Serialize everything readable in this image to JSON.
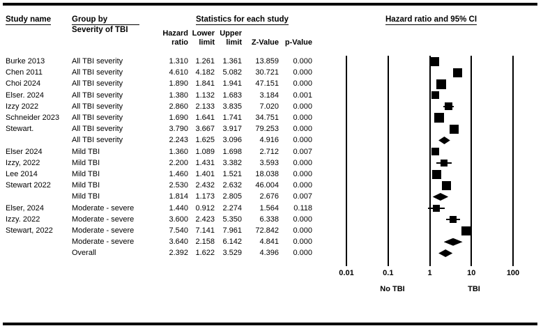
{
  "header": {
    "study_name": "Study name",
    "group_by": "Group by",
    "group_by_sub": "Severity of TBI",
    "stats_title": "Statistics for each study",
    "plot_title": "Hazard ratio and 95% CI"
  },
  "stats_columns": {
    "hazard_l1": "Hazard",
    "hazard_l2": "ratio",
    "lower_l1": "Lower",
    "lower_l2": "limit",
    "upper_l1": "Upper",
    "upper_l2": "limit",
    "z_label": "Z-Value",
    "p_label": "p-Value"
  },
  "axis": {
    "tick_labels": [
      "0.01",
      "0.1",
      "1",
      "10",
      "100"
    ],
    "left_group_label": "No TBI",
    "right_group_label": "TBI"
  },
  "colors": {
    "ink": "#000000",
    "background": "#ffffff"
  },
  "chart_data": {
    "type": "scatter",
    "subtype": "forest_plot",
    "x_scale": "log",
    "x_range": [
      0.01,
      100
    ],
    "x_ticks": [
      0.01,
      0.1,
      1,
      10,
      100
    ],
    "effect_measure": "Hazard ratio and 95% CI",
    "rows": [
      {
        "study": "Burke 2013",
        "group": "All TBI severity",
        "hazard_ratio": "1.310",
        "lower_limit": "1.261",
        "upper_limit": "1.361",
        "z_value": "13.859",
        "p_value": "0.000",
        "marker": "square",
        "size": 13
      },
      {
        "study": "Chen 2011",
        "group": "All TBI severity",
        "hazard_ratio": "4.610",
        "lower_limit": "4.182",
        "upper_limit": "5.082",
        "z_value": "30.721",
        "p_value": "0.000",
        "marker": "square",
        "size": 13
      },
      {
        "study": "Choi 2024",
        "group": "All TBI severity",
        "hazard_ratio": "1.890",
        "lower_limit": "1.841",
        "upper_limit": "1.941",
        "z_value": "47.151",
        "p_value": "0.000",
        "marker": "square",
        "size": 14
      },
      {
        "study": "Elser. 2024",
        "group": "All TBI severity",
        "hazard_ratio": "1.380",
        "lower_limit": "1.132",
        "upper_limit": "1.683",
        "z_value": "3.184",
        "p_value": "0.001",
        "marker": "square",
        "size": 11
      },
      {
        "study": "Izzy 2022",
        "group": "All TBI severity",
        "hazard_ratio": "2.860",
        "lower_limit": "2.133",
        "upper_limit": "3.835",
        "z_value": "7.020",
        "p_value": "0.000",
        "marker": "square",
        "size": 11
      },
      {
        "study": "Schneider 2023",
        "group": "All TBI severity",
        "hazard_ratio": "1.690",
        "lower_limit": "1.641",
        "upper_limit": "1.741",
        "z_value": "34.751",
        "p_value": "0.000",
        "marker": "square",
        "size": 14
      },
      {
        "study": "Stewart.",
        "group": "All TBI severity",
        "hazard_ratio": "3.790",
        "lower_limit": "3.667",
        "upper_limit": "3.917",
        "z_value": "79.253",
        "p_value": "0.000",
        "marker": "square",
        "size": 13
      },
      {
        "study": "",
        "group": "All TBI severity",
        "hazard_ratio": "2.243",
        "lower_limit": "1.625",
        "upper_limit": "3.096",
        "z_value": "4.916",
        "p_value": "0.000",
        "marker": "diamond"
      },
      {
        "study": "Elser 2024",
        "group": "Mild TBI",
        "hazard_ratio": "1.360",
        "lower_limit": "1.089",
        "upper_limit": "1.698",
        "z_value": "2.712",
        "p_value": "0.007",
        "marker": "square",
        "size": 11
      },
      {
        "study": "Izzy, 2022",
        "group": "Mild TBI",
        "hazard_ratio": "2.200",
        "lower_limit": "1.431",
        "upper_limit": "3.382",
        "z_value": "3.593",
        "p_value": "0.000",
        "marker": "square",
        "size": 10
      },
      {
        "study": "Lee 2014",
        "group": "Mild TBI",
        "hazard_ratio": "1.460",
        "lower_limit": "1.401",
        "upper_limit": "1.521",
        "z_value": "18.038",
        "p_value": "0.000",
        "marker": "square",
        "size": 13
      },
      {
        "study": "Stewart 2022",
        "group": "Mild TBI",
        "hazard_ratio": "2.530",
        "lower_limit": "2.432",
        "upper_limit": "2.632",
        "z_value": "46.004",
        "p_value": "0.000",
        "marker": "square",
        "size": 13
      },
      {
        "study": "",
        "group": "Mild TBI",
        "hazard_ratio": "1.814",
        "lower_limit": "1.173",
        "upper_limit": "2.805",
        "z_value": "2.676",
        "p_value": "0.007",
        "marker": "diamond"
      },
      {
        "study": "Elser, 2024",
        "group": "Moderate - severe",
        "hazard_ratio": "1.440",
        "lower_limit": "0.912",
        "upper_limit": "2.274",
        "z_value": "1.564",
        "p_value": "0.118",
        "marker": "square",
        "size": 10
      },
      {
        "study": "Izzy. 2022",
        "group": "Moderate - severe",
        "hazard_ratio": "3.600",
        "lower_limit": "2.423",
        "upper_limit": "5.350",
        "z_value": "6.338",
        "p_value": "0.000",
        "marker": "square",
        "size": 10
      },
      {
        "study": "Stewart, 2022",
        "group": "Moderate - severe",
        "hazard_ratio": "7.540",
        "lower_limit": "7.141",
        "upper_limit": "7.961",
        "z_value": "72.842",
        "p_value": "0.000",
        "marker": "square",
        "size": 13
      },
      {
        "study": "",
        "group": "Moderate - severe",
        "hazard_ratio": "3.640",
        "lower_limit": "2.158",
        "upper_limit": "6.142",
        "z_value": "4.841",
        "p_value": "0.000",
        "marker": "diamond"
      },
      {
        "study": "",
        "group": "Overall",
        "hazard_ratio": "2.392",
        "lower_limit": "1.622",
        "upper_limit": "3.529",
        "z_value": "4.396",
        "p_value": "0.000",
        "marker": "diamond"
      }
    ]
  }
}
